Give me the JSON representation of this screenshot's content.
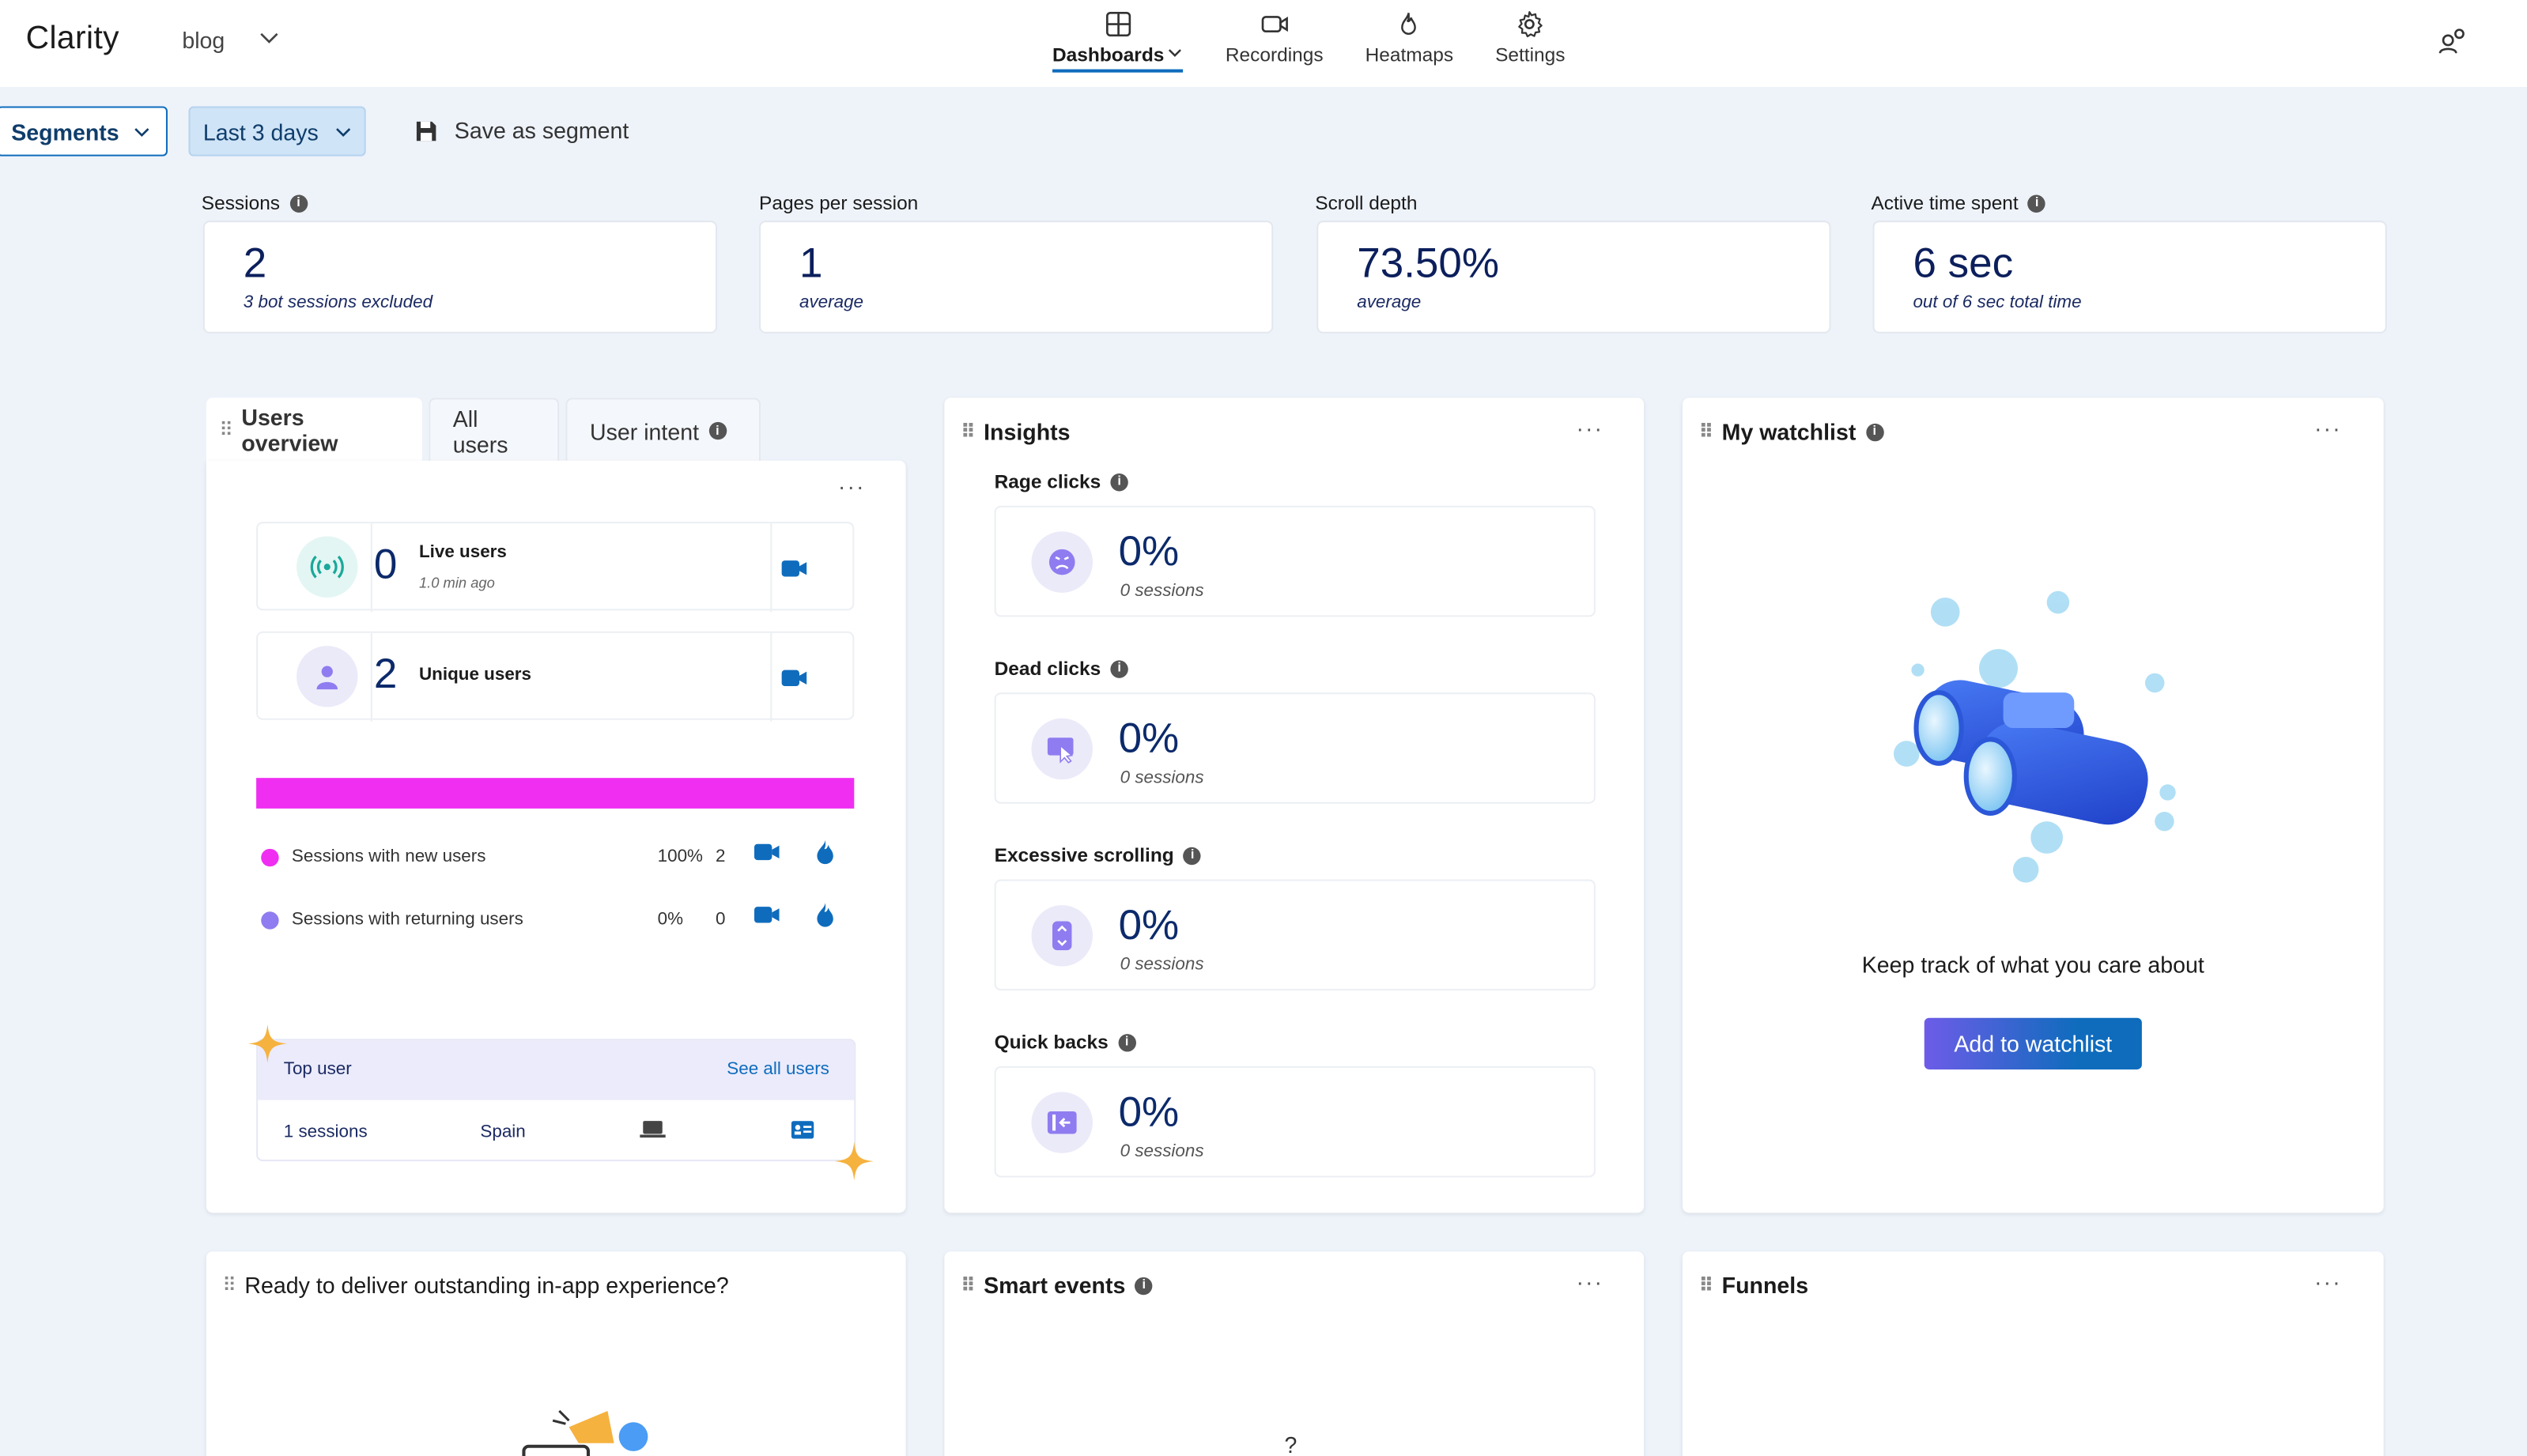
{
  "header": {
    "brand": "Clarity",
    "project": "blog",
    "nav": [
      {
        "label": "Dashboards",
        "icon": "dashboard-icon",
        "active": true
      },
      {
        "label": "Recordings",
        "icon": "video-camera-icon",
        "active": false
      },
      {
        "label": "Heatmaps",
        "icon": "flame-icon",
        "active": false
      },
      {
        "label": "Settings",
        "icon": "gear-icon",
        "active": false
      }
    ]
  },
  "filters": {
    "segments_label": "Segments",
    "date_range": "Last 3 days",
    "save_segment": "Save as segment"
  },
  "metrics": [
    {
      "label": "Sessions",
      "value": "2",
      "sub": "3 bot sessions excluded",
      "info": true
    },
    {
      "label": "Pages per session",
      "value": "1",
      "sub": "average",
      "info": false
    },
    {
      "label": "Scroll depth",
      "value": "73.50%",
      "sub": "average",
      "info": false
    },
    {
      "label": "Active time spent",
      "value": "6 sec",
      "sub": "out of 6 sec total time",
      "info": true
    }
  ],
  "users_panel": {
    "tabs": [
      "Users overview",
      "All users",
      "User intent"
    ],
    "live": {
      "count": "0",
      "label": "Live users",
      "sub": "1.0 min ago"
    },
    "unique": {
      "count": "2",
      "label": "Unique users"
    },
    "legend": [
      {
        "label": "Sessions with new users",
        "pct": "100%",
        "count": "2",
        "color": "#ef2ef2"
      },
      {
        "label": "Sessions with returning users",
        "pct": "0%",
        "count": "0",
        "color": "#8f7cf0"
      }
    ],
    "new_share": 1.0,
    "top_user": {
      "title": "Top user",
      "link": "See all users",
      "sessions": "1 sessions",
      "country": "Spain"
    }
  },
  "insights": {
    "title": "Insights",
    "items": [
      {
        "label": "Rage clicks",
        "pct": "0%",
        "sub": "0 sessions",
        "icon": "angry-face-icon"
      },
      {
        "label": "Dead clicks",
        "pct": "0%",
        "sub": "0 sessions",
        "icon": "dead-click-icon"
      },
      {
        "label": "Excessive scrolling",
        "pct": "0%",
        "sub": "0 sessions",
        "icon": "scroll-icon"
      },
      {
        "label": "Quick backs",
        "pct": "0%",
        "sub": "0 sessions",
        "icon": "back-arrow-icon"
      }
    ]
  },
  "watchlist": {
    "title": "My watchlist",
    "text": "Keep track of what you care about",
    "button": "Add to watchlist"
  },
  "bottom_panels": {
    "inapp": "Ready to deliver outstanding in-app experience?",
    "smart_events": "Smart events",
    "funnels": "Funnels",
    "smart_events_partial": "?"
  }
}
